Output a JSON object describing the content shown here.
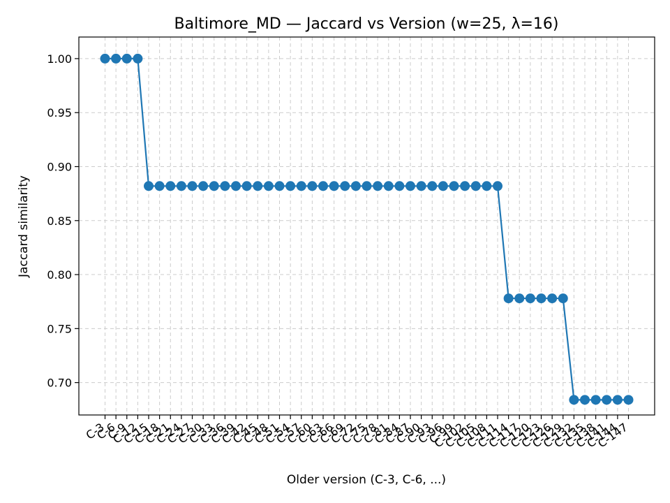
{
  "chart_data": {
    "type": "line",
    "title": "Baltimore_MD — Jaccard vs Version (w=25, λ=16)",
    "xlabel": "Older version (C-3, C-6, ...)",
    "ylabel": "Jaccard similarity",
    "ylim": [
      0.67,
      1.02
    ],
    "yticks": [
      "0.70",
      "0.75",
      "0.80",
      "0.85",
      "0.90",
      "0.95",
      "1.00"
    ],
    "grid": true,
    "color": "#1f77b4",
    "categories": [
      "C-3",
      "C-6",
      "C-9",
      "C-12",
      "C-15",
      "C-18",
      "C-21",
      "C-24",
      "C-27",
      "C-30",
      "C-33",
      "C-36",
      "C-39",
      "C-42",
      "C-45",
      "C-48",
      "C-51",
      "C-54",
      "C-57",
      "C-60",
      "C-63",
      "C-66",
      "C-69",
      "C-72",
      "C-75",
      "C-78",
      "C-81",
      "C-84",
      "C-87",
      "C-90",
      "C-93",
      "C-96",
      "C-99",
      "C-102",
      "C-105",
      "C-108",
      "C-111",
      "C-114",
      "C-117",
      "C-120",
      "C-123",
      "C-126",
      "C-129",
      "C-132",
      "C-135",
      "C-138",
      "C-141",
      "C-144",
      "C-147"
    ],
    "values": [
      1.0,
      1.0,
      1.0,
      1.0,
      0.882,
      0.882,
      0.882,
      0.882,
      0.882,
      0.882,
      0.882,
      0.882,
      0.882,
      0.882,
      0.882,
      0.882,
      0.882,
      0.882,
      0.882,
      0.882,
      0.882,
      0.882,
      0.882,
      0.882,
      0.882,
      0.882,
      0.882,
      0.882,
      0.882,
      0.882,
      0.882,
      0.882,
      0.882,
      0.882,
      0.882,
      0.882,
      0.882,
      0.778,
      0.778,
      0.778,
      0.778,
      0.778,
      0.778,
      0.684,
      0.684,
      0.684,
      0.684,
      0.684,
      0.684
    ]
  }
}
